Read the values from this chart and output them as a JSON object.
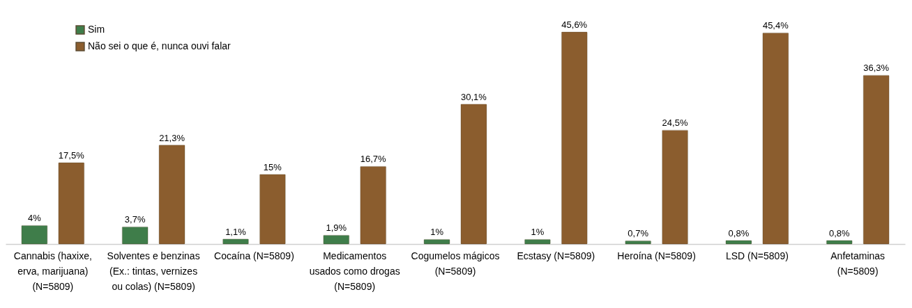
{
  "chart_data": {
    "type": "bar",
    "categories": [
      "Cannabis (haxixe, erva, marijuana) (N=5809)",
      "Solventes e benzinas (Ex.: tintas, vernizes ou colas) (N=5809)",
      "Cocaína (N=5809)",
      "Medicamentos usados como drogas (N=5809)",
      "Cogumelos mágicos (N=5809)",
      "Ecstasy (N=5809)",
      "Heroína (N=5809)",
      "LSD (N=5809)",
      "Anfetaminas (N=5809)"
    ],
    "series": [
      {
        "name": "Sim",
        "color": "#3f7d4a",
        "values": [
          4,
          3.7,
          1.1,
          1.9,
          1,
          1,
          0.7,
          0.8,
          0.8
        ],
        "value_labels": [
          "4%",
          "3,7%",
          "1,1%",
          "1,9%",
          "1%",
          "1%",
          "0,7%",
          "0,8%",
          "0,8%"
        ]
      },
      {
        "name": "Não sei o que é, nunca ouvi falar",
        "color": "#8b5d2e",
        "values": [
          17.5,
          21.3,
          15,
          16.7,
          30.1,
          45.6,
          24.5,
          45.4,
          36.3
        ],
        "value_labels": [
          "17,5%",
          "21,3%",
          "15%",
          "16,7%",
          "30,1%",
          "45,6%",
          "24,5%",
          "45,4%",
          "36,3%"
        ]
      }
    ],
    "legend": "top left"
  }
}
